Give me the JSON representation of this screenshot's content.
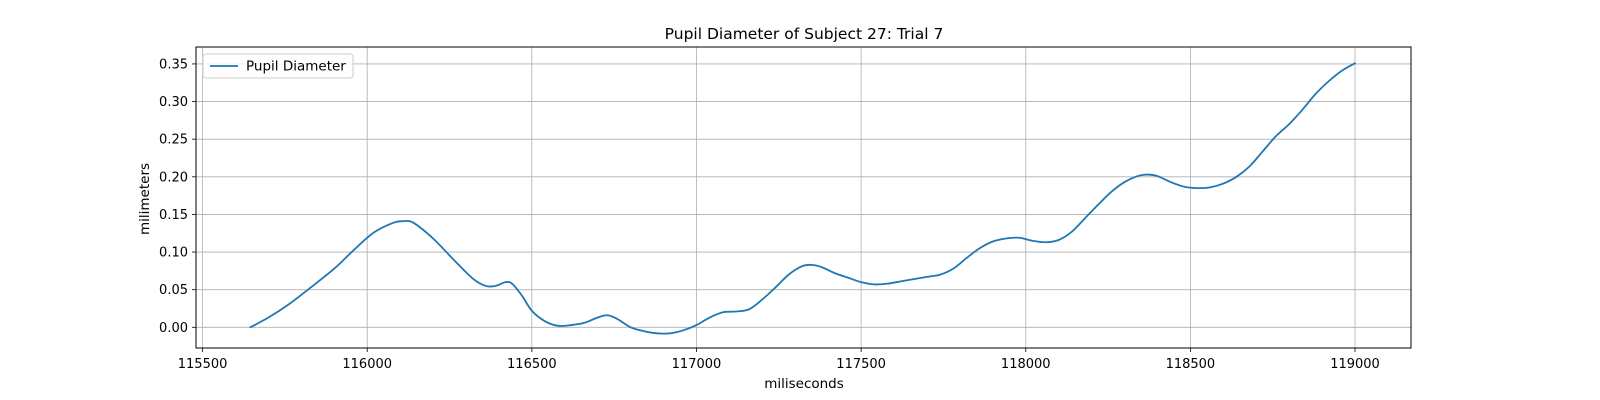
{
  "chart_data": {
    "type": "line",
    "title": "Pupil Diameter of Subject 27: Trial 7",
    "xlabel": "miliseconds",
    "ylabel": "milimeters",
    "xlim": [
      115480,
      119170
    ],
    "ylim": [
      -0.0275,
      0.3725
    ],
    "xticks": [
      115500,
      116000,
      116500,
      117000,
      117500,
      118000,
      118500,
      119000
    ],
    "yticks": [
      0.0,
      0.05,
      0.1,
      0.15,
      0.2,
      0.25,
      0.3,
      0.35
    ],
    "ytick_labels": [
      "0.00",
      "0.05",
      "0.10",
      "0.15",
      "0.20",
      "0.25",
      "0.30",
      "0.35"
    ],
    "grid": true,
    "legend_position": "upper-left",
    "series": [
      {
        "name": "Pupil Diameter",
        "color": "#1f77b4",
        "x": [
          115645,
          115700,
          115760,
          115820,
          115900,
          115960,
          116020,
          116080,
          116110,
          116140,
          116200,
          116260,
          116320,
          116360,
          116390,
          116420,
          116440,
          116470,
          116500,
          116540,
          116580,
          116620,
          116660,
          116700,
          116730,
          116760,
          116800,
          116840,
          116880,
          116920,
          116960,
          117000,
          117040,
          117080,
          117120,
          117160,
          117200,
          117240,
          117280,
          117320,
          117350,
          117380,
          117420,
          117460,
          117500,
          117540,
          117580,
          117620,
          117660,
          117700,
          117740,
          117780,
          117820,
          117860,
          117900,
          117940,
          117980,
          118020,
          118060,
          118100,
          118140,
          118180,
          118220,
          118260,
          118300,
          118340,
          118370,
          118400,
          118440,
          118480,
          118520,
          118560,
          118600,
          118640,
          118680,
          118720,
          118760,
          118800,
          118840,
          118880,
          118920,
          118960,
          119000
        ],
        "y": [
          0.0,
          0.013,
          0.03,
          0.05,
          0.078,
          0.103,
          0.126,
          0.139,
          0.141,
          0.139,
          0.118,
          0.091,
          0.065,
          0.055,
          0.055,
          0.06,
          0.058,
          0.042,
          0.022,
          0.008,
          0.002,
          0.003,
          0.006,
          0.013,
          0.016,
          0.011,
          0.0,
          -0.005,
          -0.008,
          -0.008,
          -0.004,
          0.003,
          0.013,
          0.02,
          0.021,
          0.024,
          0.037,
          0.053,
          0.07,
          0.081,
          0.083,
          0.08,
          0.072,
          0.066,
          0.06,
          0.057,
          0.058,
          0.061,
          0.064,
          0.067,
          0.07,
          0.078,
          0.092,
          0.105,
          0.114,
          0.118,
          0.119,
          0.115,
          0.113,
          0.116,
          0.127,
          0.145,
          0.163,
          0.18,
          0.193,
          0.201,
          0.203,
          0.201,
          0.193,
          0.187,
          0.185,
          0.186,
          0.191,
          0.2,
          0.214,
          0.234,
          0.254,
          0.27,
          0.289,
          0.31,
          0.327,
          0.341,
          0.351
        ]
      }
    ]
  }
}
